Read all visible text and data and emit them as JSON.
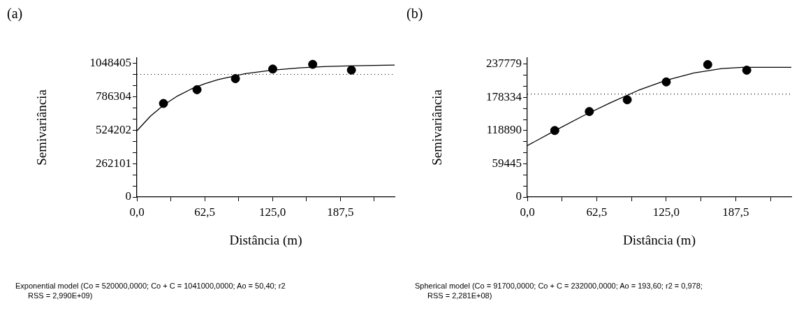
{
  "chart_data": [
    {
      "type": "scatter",
      "title": "(a)",
      "xlabel": "Distância (m)",
      "ylabel": "Semivariância",
      "xlim": [
        0,
        237.5
      ],
      "ylim": [
        0,
        1092000
      ],
      "xticks": [
        {
          "value": 0,
          "label": "0,0"
        },
        {
          "value": 31.25,
          "label": null
        },
        {
          "value": 62.5,
          "label": "62,5"
        },
        {
          "value": 93.75,
          "label": null
        },
        {
          "value": 125,
          "label": "125,0"
        },
        {
          "value": 156.25,
          "label": null
        },
        {
          "value": 187.5,
          "label": "187,5"
        },
        {
          "value": 218.75,
          "label": null
        }
      ],
      "yticks": [
        0,
        {
          "value": 87367,
          "label": null
        },
        {
          "value": 174734,
          "label": null
        },
        262101,
        {
          "value": 349468,
          "label": null
        },
        {
          "value": 436835,
          "label": null
        },
        524202,
        {
          "value": 611569,
          "label": null
        },
        {
          "value": 698936,
          "label": null
        },
        786304,
        {
          "value": 873671,
          "label": null
        },
        {
          "value": 961038,
          "label": null
        },
        1048405
      ],
      "grid": false,
      "legend": false,
      "series": [
        {
          "type": "scatter",
          "color": "#000000",
          "marker": "circle",
          "x": [
            24.5,
            55.4,
            90.8,
            125.2,
            162,
            197.7
          ],
          "values": [
            735000,
            843000,
            930000,
            1005000,
            1042000,
            997000
          ]
        },
        {
          "type": "line",
          "color": "#000000",
          "marker": "none",
          "line_style": "solid",
          "x": [
            0,
            12.5,
            25,
            37.5,
            50,
            62.5,
            75,
            100,
            125,
            150,
            175,
            200,
            237.5
          ],
          "values": [
            520000,
            635000,
            724000,
            794000,
            848000,
            890000,
            923000,
            969000,
            997000,
            1014000,
            1025000,
            1031000,
            1036000
          ]
        }
      ],
      "ref_lines": [
        {
          "axis": "y",
          "value": 963000,
          "line_style": "dotted",
          "color": "#000000"
        }
      ],
      "annotations": [
        "Exponential model (Co = 520000,0000; Co + C = 1041000,0000; Ao = 50,40; r2",
        "RSS = 2,990E+09)"
      ]
    },
    {
      "type": "scatter",
      "title": "(b)",
      "xlabel": "Distância (m)",
      "ylabel": "Semivariância",
      "xlim": [
        0,
        237.5
      ],
      "ylim": [
        0,
        248800
      ],
      "xticks": [
        {
          "value": 0,
          "label": "0,0"
        },
        {
          "value": 31.25,
          "label": null
        },
        {
          "value": 62.5,
          "label": "62,5"
        },
        {
          "value": 93.75,
          "label": null
        },
        {
          "value": 125,
          "label": "125,0"
        },
        {
          "value": 156.25,
          "label": null
        },
        {
          "value": 187.5,
          "label": "187,5"
        },
        {
          "value": 218.75,
          "label": null
        }
      ],
      "yticks": [
        0,
        {
          "value": 19815,
          "label": null
        },
        {
          "value": 39630,
          "label": null
        },
        59445,
        {
          "value": 79260,
          "label": null
        },
        {
          "value": 99075,
          "label": null
        },
        118890,
        {
          "value": 138705,
          "label": null
        },
        {
          "value": 158520,
          "label": null
        },
        178334,
        {
          "value": 198149,
          "label": null
        },
        {
          "value": 217964,
          "label": null
        },
        237779
      ],
      "grid": false,
      "legend": false,
      "series": [
        {
          "type": "scatter",
          "color": "#000000",
          "marker": "circle",
          "x": [
            24.7,
            55.8,
            89.9,
            125,
            162.3,
            197.4
          ],
          "values": [
            119000,
            153000,
            174000,
            206000,
            237000,
            227000
          ]
        },
        {
          "type": "line",
          "color": "#000000",
          "marker": "none",
          "line_style": "solid",
          "x": [
            0,
            25,
            50,
            75,
            100,
            125,
            150,
            175,
            193.6,
            237.5
          ],
          "values": [
            92000,
            119000,
            145000,
            169000,
            191000,
            209000,
            222000,
            230000,
            232000,
            232000
          ]
        }
      ],
      "ref_lines": [
        {
          "axis": "y",
          "value": 184300,
          "line_style": "dotted",
          "color": "#000000"
        }
      ],
      "annotations": [
        "Spherical model (Co = 91700,0000; Co + C = 232000,0000; Ao = 193,60; r2 = 0,978;",
        "RSS = 2,281E+08)"
      ]
    }
  ]
}
